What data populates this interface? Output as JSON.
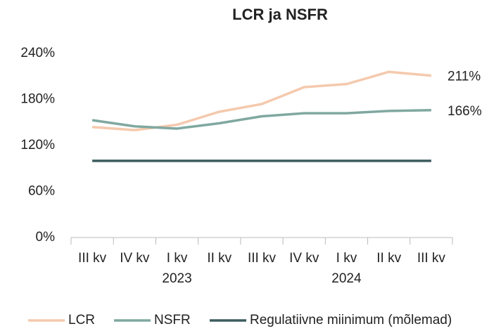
{
  "chart_data": {
    "type": "line",
    "title": "LCR ja NSFR",
    "categories": [
      "III kv",
      "IV kv",
      "I kv",
      "II kv",
      "III kv",
      "IV kv",
      "I kv",
      "II kv",
      "III kv"
    ],
    "year_labels": [
      null,
      null,
      "2023",
      null,
      null,
      null,
      "2024",
      null,
      null
    ],
    "series": [
      {
        "name": "LCR",
        "color": "#f5c9ad",
        "values": [
          144,
          140,
          147,
          164,
          174,
          196,
          200,
          216,
          211
        ],
        "value_labels": [
          null,
          null,
          null,
          null,
          null,
          null,
          null,
          null,
          "211%"
        ]
      },
      {
        "name": "NSFR",
        "color": "#7fa8a0",
        "values": [
          153,
          145,
          142,
          149,
          158,
          162,
          162,
          165,
          166
        ],
        "value_labels": [
          null,
          null,
          null,
          null,
          null,
          null,
          null,
          null,
          "166%"
        ]
      },
      {
        "name": "Regulatiivne miinimum (mõlemad)",
        "color": "#3d5c5f",
        "values": [
          100,
          100,
          100,
          100,
          100,
          100,
          100,
          100,
          100
        ]
      }
    ],
    "ylim": [
      0,
      240
    ],
    "yticks": [
      {
        "value": 0,
        "label": "0%"
      },
      {
        "value": 60,
        "label": "60%"
      },
      {
        "value": 120,
        "label": "120%"
      },
      {
        "value": 180,
        "label": "180%"
      },
      {
        "value": 240,
        "label": "240%"
      }
    ],
    "grid": false,
    "legend": "bottom"
  }
}
